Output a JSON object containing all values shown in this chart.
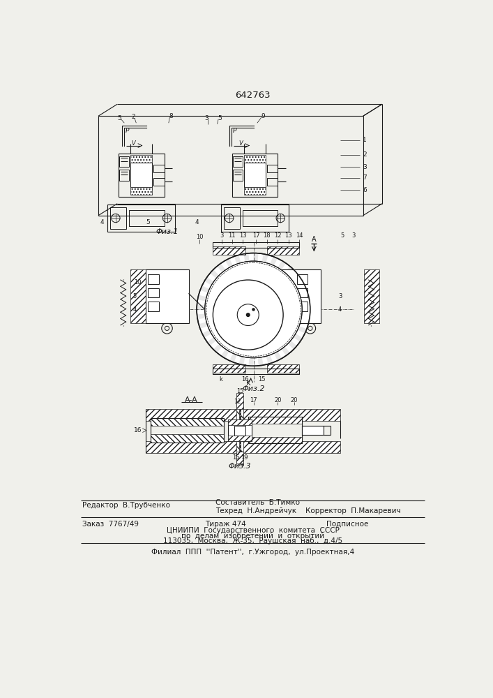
{
  "patent_number": "642763",
  "bg": "#f0f0eb",
  "lc": "#1a1a1a",
  "editor_line": "Редактор  В.Трубченко",
  "composer_line1": "Составитель  Б.Тимко",
  "composer_line2": "Техред  Н.Андрейчук    Корректор  П.Макаревич",
  "order_line": "Заказ  7767/49",
  "tirazh_line": "Тираж 474",
  "podpisnoe_line": "Подписное",
  "tsnipi_line": "ЦНИИПИ  Государственного  комитета  СССР",
  "po_delam_line": "по  делам  изобретений  и  открытий",
  "address_line": "113035,  Москва,  Ж-35,  Раушская  наб.,  д.4/5",
  "filial_line": "Филиал  ППП  ''Патент'',  г.Ужгород,  ул.Проектная,4",
  "fig1_label": "Φиз.1",
  "fig2_label": "Φиз.2",
  "fig3_label": "Φиз.3",
  "fig3_section": "A-A"
}
